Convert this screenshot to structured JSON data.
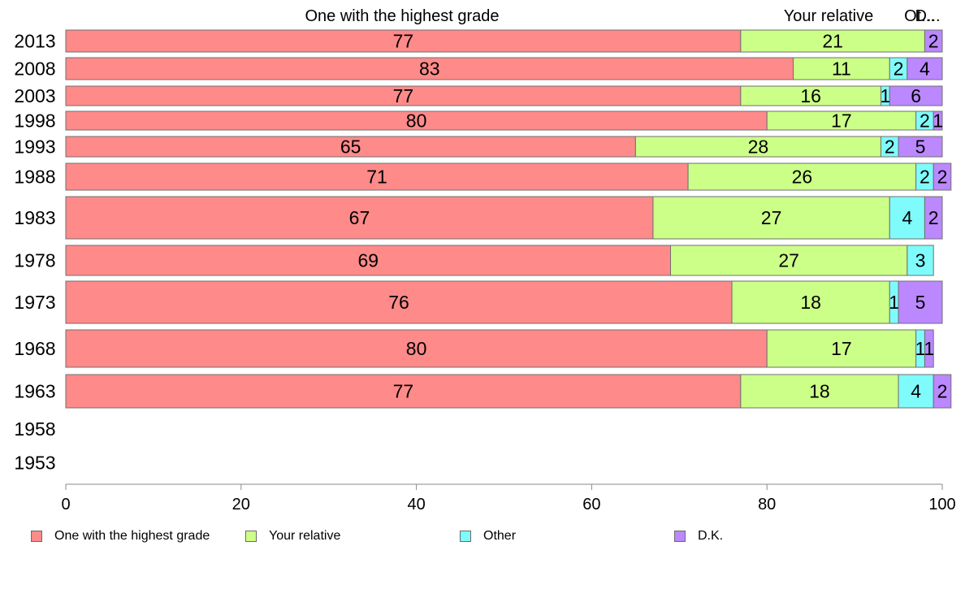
{
  "chart_data": {
    "type": "bar",
    "orientation": "horizontal",
    "stacked": true,
    "categories": [
      "2013",
      "2008",
      "2003",
      "1998",
      "1993",
      "1988",
      "1983",
      "1978",
      "1973",
      "1968",
      "1963",
      "1958",
      "1953"
    ],
    "series": [
      {
        "name": "One with the highest grade",
        "color": "#ff8a8a",
        "values": [
          77,
          83,
          77,
          80,
          65,
          71,
          67,
          69,
          76,
          80,
          77,
          null,
          null
        ]
      },
      {
        "name": "Your relative",
        "color": "#ccff88",
        "values": [
          21,
          11,
          16,
          17,
          28,
          26,
          27,
          27,
          18,
          17,
          18,
          null,
          null
        ]
      },
      {
        "name": "Other",
        "color": "#7ffbfb",
        "values": [
          0,
          2,
          1,
          2,
          2,
          2,
          4,
          3,
          1,
          1,
          4,
          null,
          null
        ]
      },
      {
        "name": "D.K.",
        "color": "#bb88ff",
        "values": [
          2,
          4,
          6,
          1,
          5,
          2,
          2,
          0,
          5,
          1,
          2,
          null,
          null
        ]
      }
    ],
    "top_labels": [
      "One with the highest grade",
      "Your relative",
      "Ot...",
      "D..."
    ],
    "xlim": [
      0,
      100
    ],
    "xticks": [
      "0",
      "20",
      "40",
      "60",
      "80",
      "100"
    ],
    "grid": false,
    "legend": "bottom"
  }
}
